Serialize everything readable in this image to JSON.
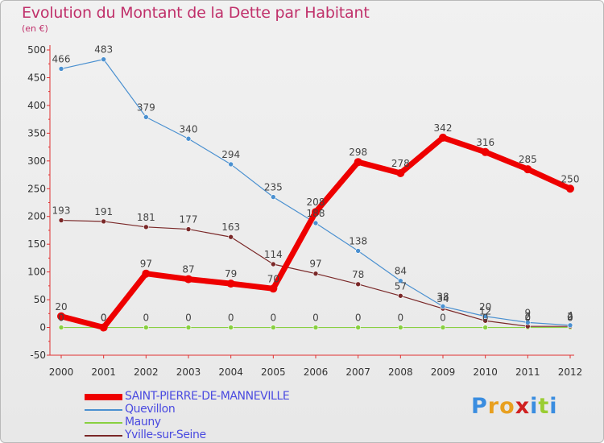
{
  "title": "Evolution du Montant de la Dette par Habitant",
  "subtitle": "(en €)",
  "logo": {
    "letters": [
      {
        "ch": "P",
        "color": "#3a8de0"
      },
      {
        "ch": "r",
        "color": "#e8a020"
      },
      {
        "ch": "o",
        "color": "#e8a020"
      },
      {
        "ch": "x",
        "color": "#d02020"
      },
      {
        "ch": "i",
        "color": "#3a8de0"
      },
      {
        "ch": "t",
        "color": "#9acd32"
      },
      {
        "ch": "i",
        "color": "#3a8de0"
      }
    ]
  },
  "chart_data": {
    "type": "line",
    "title": "Evolution du Montant de la Dette par Habitant",
    "subtitle": "(en €)",
    "x": [
      "2000",
      "2001",
      "2002",
      "2003",
      "2004",
      "2005",
      "2006",
      "2007",
      "2008",
      "2009",
      "2010",
      "2011",
      "2012"
    ],
    "y_ticks": [
      500,
      450,
      400,
      350,
      300,
      250,
      200,
      150,
      100,
      50,
      0,
      -50
    ],
    "ylim": [
      -50,
      500
    ],
    "grid": false,
    "legend_position": "bottom-left",
    "series": [
      {
        "name": "SAINT-PIERRE-DE-MANNEVILLE",
        "color": "#ee0000",
        "width": 7,
        "marker": 5,
        "values": [
          20,
          0,
          97,
          87,
          79,
          70,
          208,
          298,
          278,
          342,
          316,
          285,
          250
        ],
        "labels": [
          "20",
          "0",
          "97",
          "87",
          "79",
          "70",
          "208",
          "298",
          "278",
          "342",
          "316",
          "285",
          "250"
        ]
      },
      {
        "name": "Quevillon",
        "color": "#4a90d0",
        "width": 1.2,
        "marker": 3,
        "values": [
          466,
          483,
          379,
          340,
          294,
          235,
          188,
          138,
          84,
          38,
          20,
          9,
          4
        ],
        "labels": [
          "466",
          "483",
          "379",
          "340",
          "294",
          "235",
          "188",
          "138",
          "84",
          "38",
          "20",
          "9",
          "4"
        ]
      },
      {
        "name": "Mauny",
        "color": "#88d040",
        "width": 1.2,
        "marker": 3,
        "values": [
          0,
          0,
          0,
          0,
          0,
          0,
          0,
          0,
          0,
          0,
          0,
          0,
          0
        ],
        "labels": [
          "0",
          "0",
          "0",
          "0",
          "0",
          "0",
          "0",
          "0",
          "0",
          "0",
          "0",
          "0",
          "0"
        ]
      },
      {
        "name": "Yville-sur-Seine",
        "color": "#7a2828",
        "width": 1.2,
        "marker": 3,
        "values": [
          193,
          191,
          181,
          177,
          163,
          114,
          97,
          78,
          57,
          34,
          12,
          2,
          2
        ],
        "labels": [
          "193",
          "191",
          "181",
          "177",
          "163",
          "114",
          "97",
          "78",
          "57",
          "34",
          "12",
          "2",
          "2"
        ]
      }
    ]
  }
}
